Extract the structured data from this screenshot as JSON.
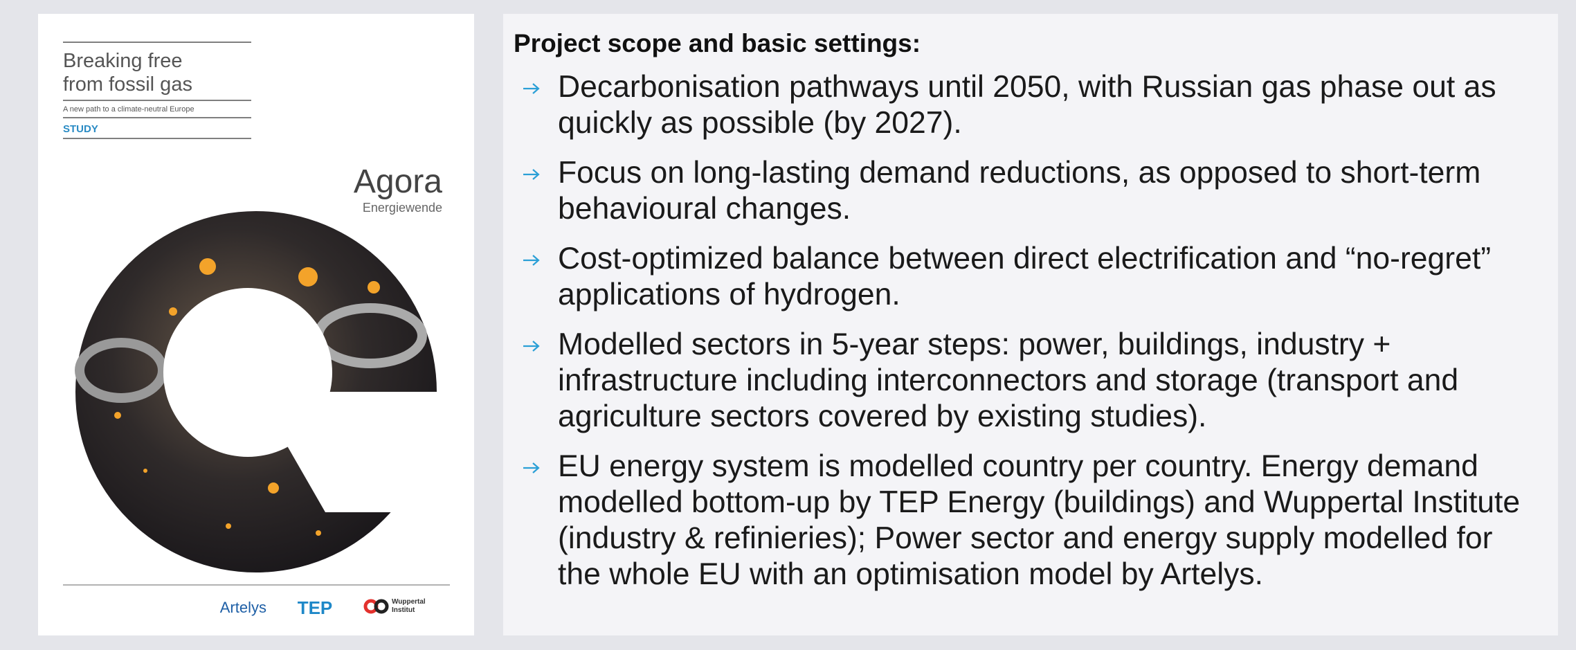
{
  "cover": {
    "title_lines": [
      "Breaking free",
      "from fossil gas"
    ],
    "subtitle": "A new path to a climate-neutral Europe",
    "label": "STUDY",
    "brand": "Agora",
    "brand_sub": "Energiewende",
    "partners": [
      "Artelys",
      "TEP"
    ],
    "wuppertal_lines": [
      "Wuppertal",
      "Institut"
    ]
  },
  "content": {
    "heading": "Project scope and basic settings:",
    "bullets": [
      "Decarbonisation pathways until 2050, with Russian gas phase out as quickly as possible (by 2027).",
      "Focus on long-lasting demand reductions, as opposed to short-term behavioural changes.",
      "Cost-optimized balance between direct electrification and “no-regret” applications of hydrogen.",
      "Modelled sectors in 5-year steps: power, buildings, industry + infrastructure including interconnectors and storage (transport and agriculture sectors covered by existing studies).",
      "EU energy system is modelled country per country. Energy demand modelled bottom-up by TEP Energy (buildings) and Wuppertal Institute (industry & refinieries); Power sector and energy supply modelled for the whole EU with an optimisation model by Artelys."
    ]
  }
}
